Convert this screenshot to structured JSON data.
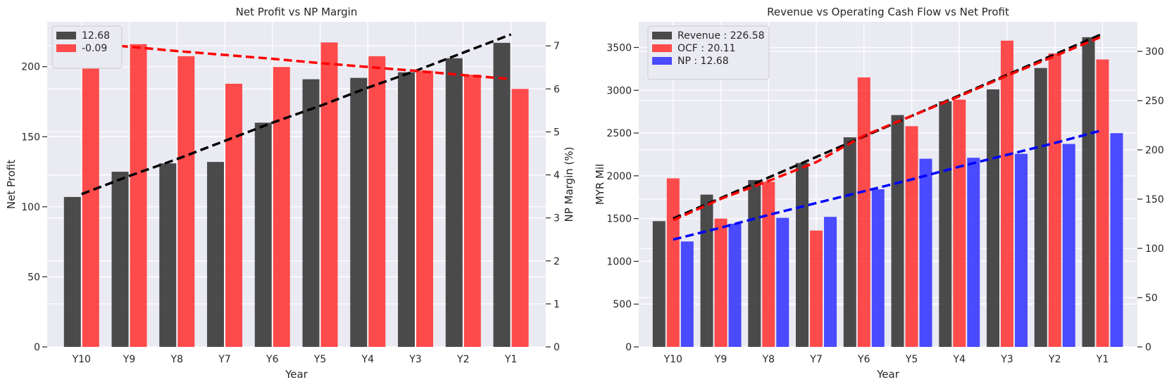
{
  "chart_data": [
    {
      "type": "bar",
      "title": "Net Profit vs NP Margin",
      "xlabel": "Year",
      "ylabel": "Net Profit",
      "y2label": "NP Margin (%)",
      "categories": [
        "Y10",
        "Y9",
        "Y8",
        "Y7",
        "Y6",
        "Y5",
        "Y4",
        "Y3",
        "Y2",
        "Y1"
      ],
      "ylim": [
        0,
        232
      ],
      "y2lim": [
        0,
        7.56
      ],
      "yticks": [
        0,
        50,
        100,
        150,
        200
      ],
      "y2ticks": [
        0,
        1,
        2,
        3,
        4,
        5,
        6,
        7
      ],
      "grid": true,
      "legend_position": "top-left",
      "series": [
        {
          "name": "12.68",
          "axis": "left",
          "color": "#333333",
          "values": [
            107,
            125,
            131,
            132,
            160,
            191,
            192,
            196,
            206,
            217
          ]
        },
        {
          "name": "-0.09",
          "axis": "right",
          "color": "#ff3333",
          "values": [
            7.27,
            7.04,
            6.76,
            6.12,
            6.51,
            7.08,
            6.76,
            6.42,
            6.33,
            6.0
          ]
        }
      ],
      "trendlines": [
        {
          "axis": "left",
          "color": "#000000",
          "values": [
            109,
            122,
            134,
            147,
            160,
            172,
            185,
            197,
            210,
            223
          ]
        },
        {
          "axis": "right",
          "color": "#ff0000",
          "values": [
            7.07,
            6.98,
            6.88,
            6.79,
            6.7,
            6.6,
            6.51,
            6.42,
            6.32,
            6.23
          ]
        }
      ]
    },
    {
      "type": "bar",
      "title": "Revenue vs Operating Cash Flow vs Net Profit",
      "xlabel": "Year",
      "ylabel": "MYR Mil",
      "y2label": "",
      "categories": [
        "Y10",
        "Y9",
        "Y8",
        "Y7",
        "Y6",
        "Y5",
        "Y4",
        "Y3",
        "Y2",
        "Y1"
      ],
      "ylim": [
        0,
        3800
      ],
      "y2lim": [
        0,
        330
      ],
      "yticks": [
        0,
        500,
        1000,
        1500,
        2000,
        2500,
        3000,
        3500
      ],
      "y2ticks": [
        0,
        50,
        100,
        150,
        200,
        250,
        300
      ],
      "grid": true,
      "legend_position": "top-left",
      "series": [
        {
          "name": "Revenue : 226.58",
          "axis": "left",
          "color": "#333333",
          "values": [
            1470,
            1780,
            1950,
            2150,
            2450,
            2710,
            2870,
            3010,
            3260,
            3620
          ]
        },
        {
          "name": "OCF : 20.11",
          "axis": "left",
          "color": "#ff3333",
          "values": [
            1970,
            1500,
            1930,
            1360,
            3150,
            2580,
            2890,
            3580,
            3430,
            3360
          ]
        },
        {
          "name": "NP : 12.68",
          "axis": "right",
          "color": "#3333ff",
          "values": [
            107,
            125,
            131,
            132,
            160,
            191,
            192,
            196,
            206,
            217
          ]
        }
      ],
      "trendlines": [
        {
          "axis": "left",
          "color": "#000000",
          "values": [
            1500,
            1740,
            1980,
            2220,
            2460,
            2700,
            2940,
            3180,
            3420,
            3660
          ]
        },
        {
          "axis": "left",
          "color": "#ff0000",
          "values": [
            1480,
            1730,
            1940,
            2160,
            2470,
            2700,
            2930,
            3170,
            3400,
            3630
          ]
        },
        {
          "axis": "right",
          "color": "#0000ff",
          "values": [
            109,
            121,
            134,
            146,
            158,
            170,
            183,
            195,
            207,
            220
          ]
        }
      ]
    }
  ]
}
